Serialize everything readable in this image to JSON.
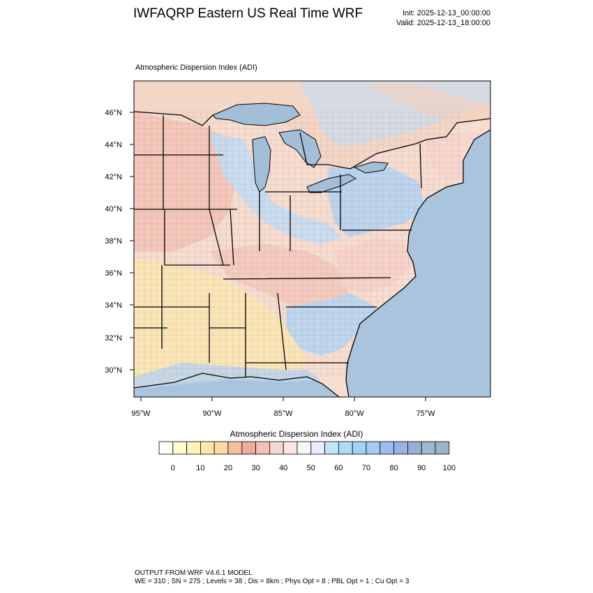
{
  "header": {
    "title": "IWFAQRP Eastern US Real Time WRF",
    "init": "Init: 2025-12-13_00:00:00",
    "valid": "Valid: 2025-12-13_18:00:00"
  },
  "map": {
    "title": "Atmospheric Dispersion Index   (ADI)",
    "lat_labels": [
      "46°N",
      "44°N",
      "42°N",
      "40°N",
      "38°N",
      "36°N",
      "34°N",
      "32°N",
      "30°N"
    ],
    "lon_labels": [
      "95°W",
      "90°W",
      "85°W",
      "80°W",
      "75°W"
    ],
    "colors": {
      "ocean": "#a9c4dc",
      "lakes": "#a3bfd8",
      "red": "#f3c2b4",
      "pink": "#f8dcd4",
      "yellow": "#fbe6b4",
      "lightblue": "#c5dcf2",
      "blue": "#b7d3f0"
    }
  },
  "colorbar": {
    "title": "Atmospheric Dispersion Index  (ADI)",
    "colors": [
      "#ffffff",
      "#fffbd2",
      "#fff2bc",
      "#ffe8a8",
      "#fcd9a6",
      "#f6c0a0",
      "#f2a9a0",
      "#f5c0bc",
      "#f8d6d2",
      "#fce6e4",
      "#fbf6f6",
      "#e6eefa",
      "#c6e2f7",
      "#aedcf7",
      "#9ed4f6",
      "#a6cbf3",
      "#9ebcf0",
      "#9ab0e6",
      "#98b0d6",
      "#a0b8cc",
      "#9db3c8"
    ],
    "labels": [
      "0",
      "10",
      "20",
      "30",
      "40",
      "50",
      "60",
      "70",
      "80",
      "90",
      "100"
    ]
  },
  "footer": {
    "line1": "OUTPUT FROM WRF V4.6.1 MODEL",
    "line2": "WE = 310 ; SN = 275 ; Levels = 38 ; Dis = 8km ; Phys Opt = 8 ; PBL Opt = 1 ; Cu Opt = 3"
  }
}
